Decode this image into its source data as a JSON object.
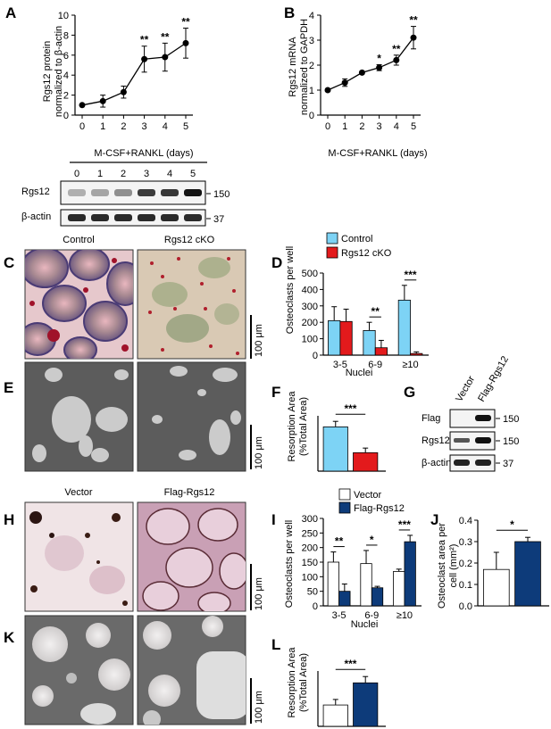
{
  "panels": {
    "A": "A",
    "B": "B",
    "C": "C",
    "D": "D",
    "E": "E",
    "F": "F",
    "G": "G",
    "H": "H",
    "I": "I",
    "J": "J",
    "K": "K",
    "L": "L"
  },
  "blot_A": {
    "lanes": [
      "0",
      "1",
      "2",
      "3",
      "4",
      "5"
    ],
    "rows": [
      "Rgs12",
      "β-actin"
    ],
    "markers": [
      "150",
      "37"
    ]
  },
  "blot_G": {
    "lanes": [
      "Vector",
      "Flag-Rgs12"
    ],
    "rows": [
      "Flag",
      "Rgs12",
      "β-actin"
    ],
    "markers": [
      "150",
      "150",
      "37"
    ]
  },
  "images": {
    "C_left_title": "Control",
    "C_right_title": "Rgs12 cKO",
    "H_left_title": "Vector",
    "H_right_title": "Flag-Rgs12",
    "scale_C": "100 μm",
    "scale_E": "100 μm",
    "scale_H": "100 μm",
    "scale_K": "100 μm"
  },
  "legend_D": {
    "control": "Control",
    "cko": "Rgs12 cKO",
    "control_color": "#7dd3f5",
    "cko_color": "#e31a1c"
  },
  "legend_I": {
    "vector": "Vector",
    "flag": "Flag-Rgs12",
    "vector_color": "#ffffff",
    "flag_color": "#0d3b7a"
  },
  "chart_data": [
    {
      "id": "A",
      "type": "line",
      "x": [
        0,
        1,
        2,
        3,
        4,
        5
      ],
      "values": [
        1.0,
        1.4,
        2.3,
        5.6,
        5.8,
        7.2
      ],
      "errors": [
        0.1,
        0.6,
        0.6,
        1.3,
        1.4,
        1.5
      ],
      "annotations": [
        "",
        "",
        "",
        "**",
        "**",
        "**"
      ],
      "ylabel_line1": "Rgs12 protein",
      "ylabel_line2": "normalized to β-actin",
      "xlabel": "M-CSF+RANKL (days)",
      "yticks": [
        0,
        2,
        4,
        6,
        8,
        10
      ],
      "ylim": [
        0,
        10
      ]
    },
    {
      "id": "B",
      "type": "line",
      "x": [
        0,
        1,
        2,
        3,
        4,
        5
      ],
      "values": [
        1.0,
        1.3,
        1.7,
        1.9,
        2.2,
        3.1
      ],
      "errors": [
        0.05,
        0.15,
        0.05,
        0.12,
        0.2,
        0.45
      ],
      "annotations": [
        "",
        "",
        "",
        "*",
        "**",
        "**"
      ],
      "ylabel_line1": "Rgs12 mRNA",
      "ylabel_line2": "normalized to GAPDH",
      "xlabel": "M-CSF+RANKL (days)",
      "yticks": [
        0,
        1,
        2,
        3,
        4
      ],
      "ylim": [
        0,
        4
      ]
    },
    {
      "id": "D",
      "type": "bar",
      "categories": [
        "3-5",
        "6-9",
        "≥10"
      ],
      "series": [
        {
          "name": "Control",
          "values": [
            210,
            150,
            335
          ],
          "errors": [
            85,
            50,
            90
          ]
        },
        {
          "name": "Rgs12 cKO",
          "values": [
            205,
            45,
            10
          ],
          "errors": [
            75,
            45,
            10
          ]
        }
      ],
      "annotations": [
        "",
        "**",
        "***"
      ],
      "ylabel": "Osteoclasts per well",
      "xlabel": "Nuclei",
      "yticks": [
        0,
        100,
        200,
        300,
        400,
        500
      ],
      "ylim": [
        0,
        500
      ]
    },
    {
      "id": "F",
      "type": "bar",
      "categories": [
        "Control",
        "Rgs12 cKO"
      ],
      "values": [
        24,
        10
      ],
      "errors": [
        3,
        2.5
      ],
      "annotations": [
        "***"
      ],
      "ylabel_line1": "Resorption Area",
      "ylabel_line2": "(%Total Area)",
      "ylim": [
        0,
        30
      ]
    },
    {
      "id": "I",
      "type": "bar",
      "categories": [
        "3-5",
        "6-9",
        "≥10"
      ],
      "series": [
        {
          "name": "Vector",
          "values": [
            150,
            145,
            118
          ],
          "errors": [
            35,
            45,
            8
          ]
        },
        {
          "name": "Flag-Rgs12",
          "values": [
            50,
            62,
            220
          ],
          "errors": [
            25,
            5,
            22
          ]
        }
      ],
      "annotations": [
        "**",
        "*",
        "***"
      ],
      "ylabel": "Osteoclasts per well",
      "xlabel": "Nuclei",
      "yticks": [
        0,
        50,
        100,
        150,
        200,
        250,
        300
      ],
      "ylim": [
        0,
        300
      ]
    },
    {
      "id": "J",
      "type": "bar",
      "categories": [
        "Vector",
        "Flag-Rgs12"
      ],
      "values": [
        0.17,
        0.3
      ],
      "errors": [
        0.08,
        0.02
      ],
      "annotations": [
        "*"
      ],
      "ylabel_line1": "Osteoclast area per",
      "ylabel_line2": "cell (mm²)",
      "yticks": [
        0.0,
        0.1,
        0.2,
        0.3,
        0.4
      ],
      "ylim": [
        0,
        0.4
      ]
    },
    {
      "id": "L",
      "type": "bar",
      "categories": [
        "Vector",
        "Flag-Rgs12"
      ],
      "values": [
        27,
        55
      ],
      "errors": [
        7,
        8
      ],
      "annotations": [
        "***"
      ],
      "ylabel_line1": "Resorption Area",
      "ylabel_line2": "(%Total Area)",
      "ylim": [
        0,
        70
      ]
    }
  ]
}
